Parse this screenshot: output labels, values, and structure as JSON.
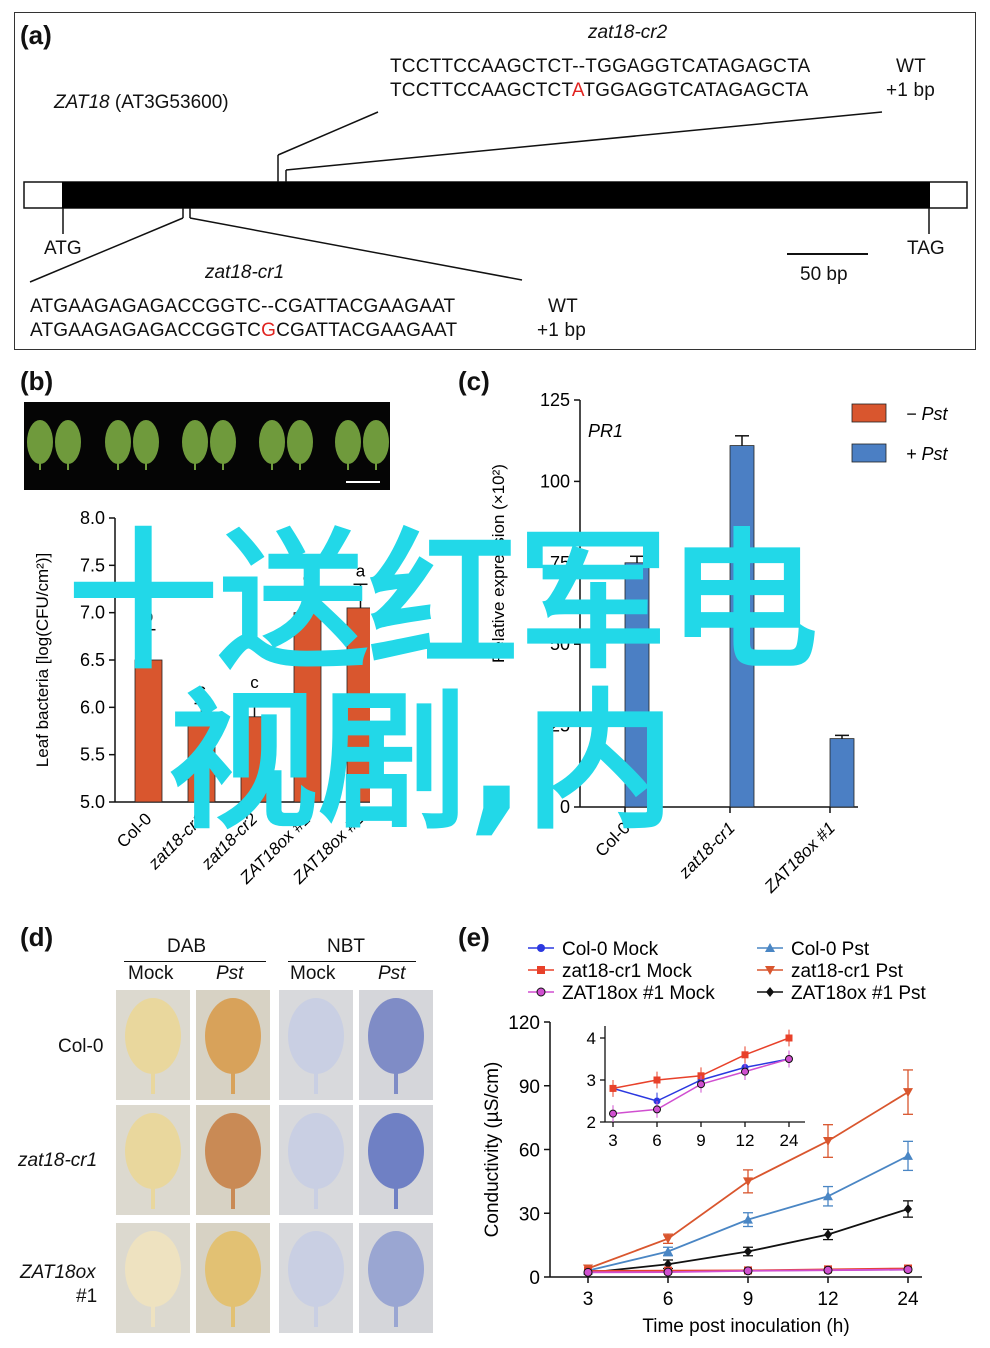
{
  "panel_a": {
    "label": "(a)",
    "gene_name": "ZAT18",
    "gene_id": "(AT3G53600)",
    "cr2_title": "zat18-cr2",
    "cr2_wt": "TCCTTCCAAGCTCT--TGGAGGTCATAGAGCTA",
    "cr2_wt_tag": "WT",
    "cr2_mut_a": "TCCTTCCAAGCTCT",
    "cr2_mut_ins": "A",
    "cr2_mut_b": "TGGAGGTCATAGAGCTA",
    "cr2_mut_tag": "+1 bp",
    "atg": "ATG",
    "tag": "TAG",
    "scale": "50 bp",
    "cr1_title": "zat18-cr1",
    "cr1_wt": "ATGAAGAGAGACCGGTC--CGATTACGAAGAAT",
    "cr1_wt_tag": "WT",
    "cr1_mut_a": "ATGAAGAGAGACCGGTC",
    "cr1_mut_ins": "G",
    "cr1_mut_b": "CGATTACGAAGAAT",
    "cr1_mut_tag": "+1 bp"
  },
  "panel_b": {
    "label": "(b)",
    "ylabel": "Leaf bacteria [log(CFU/cm²)]",
    "color": "#d9562e",
    "leaf_color": "#6f9a3c"
  },
  "panel_c": {
    "label": "(c)",
    "inner_title": "PR1",
    "ylabel": "Relative expression (×10²)",
    "legend_minus": "− Pst",
    "legend_plus": "+ Pst",
    "color_minus": "#d9562e",
    "color_plus": "#4b7fc4"
  },
  "panel_d": {
    "label": "(d)",
    "dab": "DAB",
    "nbt": "NBT",
    "mock": "Mock",
    "pst": "Pst",
    "row1": "Col-0",
    "row2": "zat18-cr1",
    "row3a": "ZAT18ox",
    "row3b": "#1"
  },
  "panel_e": {
    "label": "(e)",
    "legend": [
      {
        "name": "Col-0 Mock",
        "color": "#2b38e0"
      },
      {
        "name": "zat18-cr1 Mock",
        "color": "#e8412a"
      },
      {
        "name": "ZAT18ox #1 Mock",
        "color": "#d04fd0"
      },
      {
        "name": "Col-0 Pst",
        "color": "#4a86c4"
      },
      {
        "name": "zat18-cr1 Pst",
        "color": "#d9562e"
      },
      {
        "name": "ZAT18ox #1 Pst",
        "color": "#111111"
      }
    ]
  },
  "chart_data": [
    {
      "type": "bar",
      "panel": "b",
      "categories": [
        "Col-0",
        "zat18-cr1",
        "zat18-cr2",
        "ZAT18ox #1",
        "ZAT18ox #2"
      ],
      "values": [
        6.5,
        5.82,
        5.9,
        7.0,
        7.05
      ],
      "errors": [
        0.32,
        0.22,
        0.22,
        0.25,
        0.25
      ],
      "letters": [
        "b",
        "c",
        "c",
        "a",
        "a"
      ],
      "ylabel": "Leaf bacteria [log(CFU/cm²)]",
      "ylim": [
        5.0,
        8.0
      ],
      "yticks": [
        "5.0",
        "5.5",
        "6.0",
        "6.5",
        "7.0",
        "7.5",
        "8.0"
      ]
    },
    {
      "type": "bar",
      "panel": "c",
      "title": "PR1",
      "categories": [
        "Col-0",
        "zat18-cr1",
        "ZAT18ox #1"
      ],
      "series": [
        {
          "name": "− Pst",
          "values": [
            0,
            0,
            0
          ]
        },
        {
          "name": "+ Pst",
          "values": [
            75,
            111,
            21
          ]
        }
      ],
      "errors_plus": [
        2,
        3,
        1
      ],
      "ylabel": "Relative expression (×10²)",
      "ylim": [
        0,
        125
      ],
      "yticks": [
        "0",
        "25",
        "50",
        "75",
        "100",
        "125"
      ]
    },
    {
      "type": "line",
      "panel": "e",
      "x": [
        3,
        6,
        9,
        12,
        24
      ],
      "xticks": [
        "3",
        "6",
        "9",
        "12",
        "24"
      ],
      "xlabel": "Time post inoculation (h)",
      "ylabel": "Conductivity (µS/cm)",
      "ylim": [
        0,
        120
      ],
      "yticks": [
        "0",
        "30",
        "60",
        "90",
        "120"
      ],
      "series": [
        {
          "name": "Col-0 Mock",
          "values": [
            2.8,
            2.5,
            3.0,
            3.3,
            3.5
          ]
        },
        {
          "name": "zat18-cr1 Mock",
          "values": [
            2.8,
            3.0,
            3.1,
            3.6,
            4.0
          ]
        },
        {
          "name": "ZAT18ox #1 Mock",
          "values": [
            2.2,
            2.3,
            2.9,
            3.2,
            3.5
          ]
        },
        {
          "name": "Col-0 Pst",
          "values": [
            3,
            12,
            27,
            38,
            57
          ]
        },
        {
          "name": "zat18-cr1 Pst",
          "values": [
            4,
            18,
            45,
            64,
            87
          ]
        },
        {
          "name": "ZAT18ox #1 Pst",
          "values": [
            2,
            6,
            12,
            20,
            32
          ]
        }
      ],
      "inset": {
        "ylim": [
          2,
          4
        ],
        "yticks": [
          "2",
          "3",
          "4"
        ],
        "xticks": [
          "3",
          "6",
          "9",
          "12",
          "24"
        ]
      }
    }
  ],
  "overlay": {
    "line1": "十送红军电",
    "line2": "视剧,内"
  }
}
